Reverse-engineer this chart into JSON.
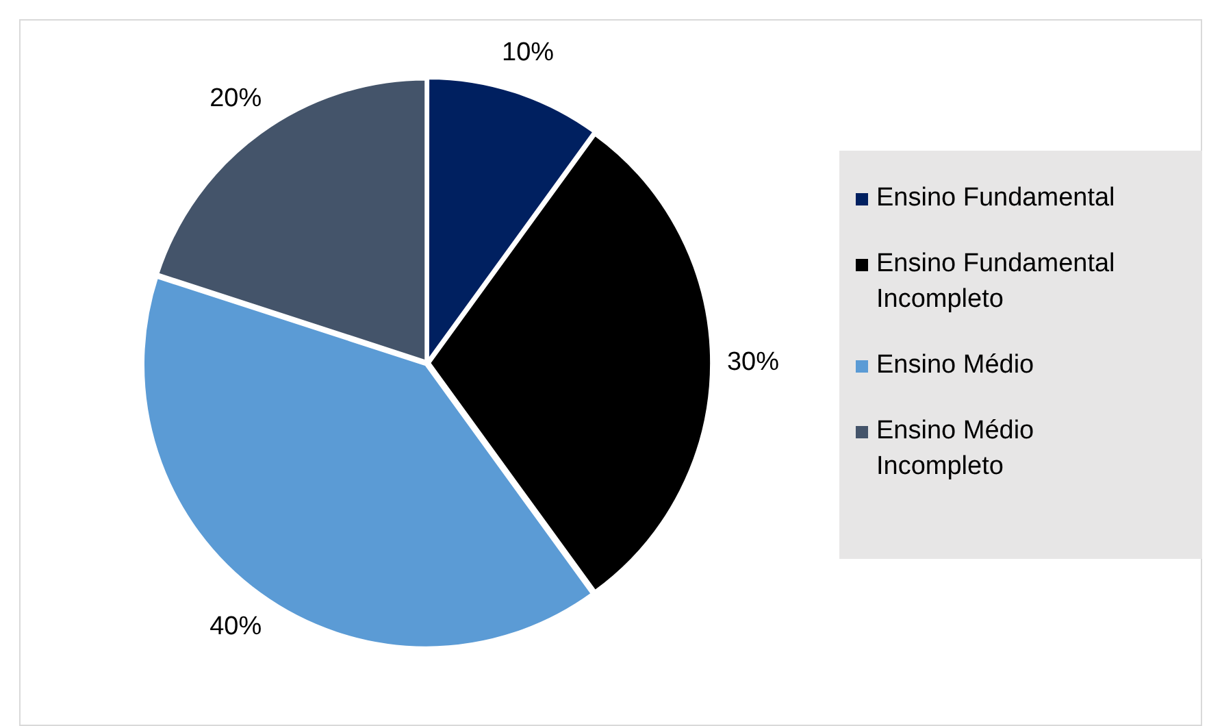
{
  "chart_data": {
    "type": "pie",
    "categories": [
      "Ensino Fundamental",
      "Ensino Fundamental Incompleto",
      "Ensino Médio",
      "Ensino Médio Incompleto"
    ],
    "values": [
      10,
      30,
      40,
      20
    ],
    "colors": [
      "#002060",
      "#000000",
      "#5b9bd5",
      "#44546a"
    ],
    "value_labels": [
      "10%",
      "30%",
      "40%",
      "20%"
    ],
    "legend": "right"
  }
}
